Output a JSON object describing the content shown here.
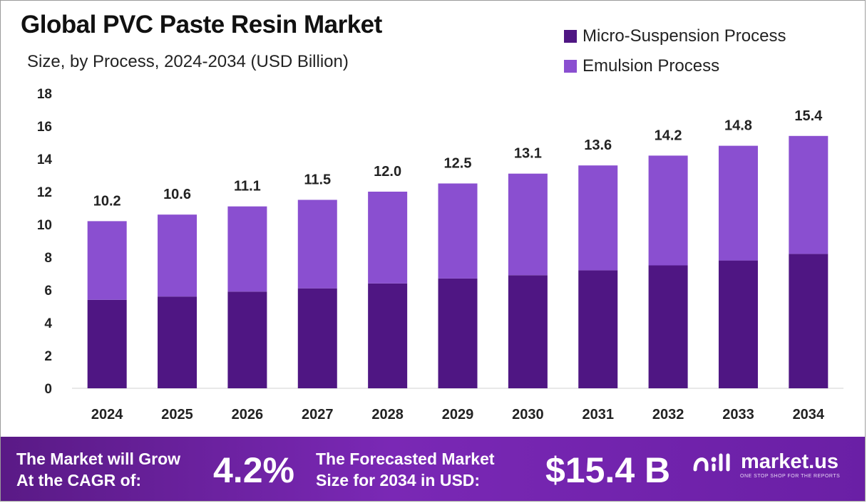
{
  "header": {
    "title": "Global PVC Paste Resin Market",
    "subtitle": "Size, by Process, 2024-2034 (USD Billion)"
  },
  "colors": {
    "micro": "#4f1683",
    "emulsion": "#8a4fd0",
    "footer": "#6a1fa5"
  },
  "legend": [
    {
      "name": "Micro-Suspension Process",
      "color": "#4f1683"
    },
    {
      "name": "Emulsion Process",
      "color": "#8a4fd0"
    }
  ],
  "chart_data": {
    "type": "bar",
    "stacked": true,
    "categories": [
      "2024",
      "2025",
      "2026",
      "2027",
      "2028",
      "2029",
      "2030",
      "2031",
      "2032",
      "2033",
      "2034"
    ],
    "series": [
      {
        "name": "Micro-Suspension Process",
        "values": [
          5.4,
          5.6,
          5.9,
          6.1,
          6.4,
          6.7,
          6.9,
          7.2,
          7.5,
          7.8,
          8.2
        ]
      },
      {
        "name": "Emulsion Process",
        "values": [
          4.8,
          5.0,
          5.2,
          5.4,
          5.6,
          5.8,
          6.2,
          6.4,
          6.7,
          7.0,
          7.2
        ]
      }
    ],
    "totals": [
      "10.2",
      "10.6",
      "11.1",
      "11.5",
      "12.0",
      "12.5",
      "13.1",
      "13.6",
      "14.2",
      "14.8",
      "15.4"
    ],
    "yticks": [
      0,
      2,
      4,
      6,
      8,
      10,
      12,
      14,
      16,
      18
    ],
    "ylim": [
      0,
      18
    ],
    "title": "Global PVC Paste Resin Market",
    "xlabel": "",
    "ylabel": "",
    "legend_position": "top-right",
    "grid": false
  },
  "footer": {
    "cagr_label_line1": "The Market will Grow",
    "cagr_label_line2": "At the CAGR of:",
    "cagr_value": "4.2%",
    "forecast_label_line1": "The Forecasted Market",
    "forecast_label_line2": "Size for 2034 in USD:",
    "forecast_value": "$15.4 B",
    "brand_name": "market.us",
    "brand_tagline": "ONE STOP SHOP FOR THE REPORTS"
  }
}
